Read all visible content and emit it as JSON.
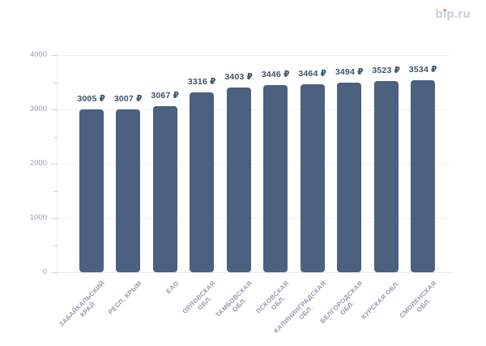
{
  "logo": {
    "text": "bip.ru",
    "color": "#c9cdd9",
    "dot_color": "#ee8a6c"
  },
  "chart_data": {
    "type": "bar",
    "title": "",
    "categories": [
      "ЗАБАЙКАЛЬСКИЙ КРАЙ",
      "РЕСП. КРЫМ",
      "ЕАО",
      "ОРЛОВСКАЯ ОБЛ.",
      "ТАМБОВСКАЯ ОБЛ.",
      "ПСКОВСКАЯ ОБЛ.",
      "КАЛИНИНГРАДСКАЯ ОБЛ.",
      "БЕЛГОРОДСКАЯ ОБЛ.",
      "КУРСКАЯ ОБЛ.",
      "СМОЛЕНСКАЯ ОБЛ."
    ],
    "category_lines": [
      [
        "ЗАБАЙКАЛЬСКИЙ",
        "КРАЙ"
      ],
      [
        "РЕСП. КРЫМ"
      ],
      [
        "ЕАО"
      ],
      [
        "ОРЛОВСКАЯ",
        "ОБЛ."
      ],
      [
        "ТАМБОВСКАЯ",
        "ОБЛ."
      ],
      [
        "ПСКОВСКАЯ",
        "ОБЛ."
      ],
      [
        "КАЛИНИНГРАДСКАЯ",
        "ОБЛ."
      ],
      [
        "БЕЛГОРОДСКАЯ",
        "ОБЛ."
      ],
      [
        "КУРСКАЯ ОБЛ."
      ],
      [
        "СМОЛЕНСКАЯ",
        "ОБЛ."
      ]
    ],
    "values": [
      3005,
      3007,
      3067,
      3316,
      3403,
      3446,
      3464,
      3494,
      3523,
      3534
    ],
    "value_labels": [
      "3005 ₽",
      "3007 ₽",
      "3067 ₽",
      "3316 ₽",
      "3403 ₽",
      "3446 ₽",
      "3464 ₽",
      "3494 ₽",
      "3523 ₽",
      "3534 ₽"
    ],
    "unit": "₽",
    "xlabel": "",
    "ylabel": "",
    "ylim": [
      0,
      4000
    ],
    "ytick_step": 1000,
    "yminor_step": 500,
    "ytick_labels": [
      "0",
      "1000",
      "2000",
      "3000",
      "4000"
    ],
    "grid": "horizontal-dotted-major",
    "legend": "none",
    "colors": {
      "bar": "#4c6080",
      "value_label": "#3e5168",
      "ytick_label": "#99a1b1",
      "xtick_label": "#949cac",
      "grid": "#dfe2ea",
      "tick": "#cfd4de",
      "axis_line": "#e7e9ef"
    }
  }
}
